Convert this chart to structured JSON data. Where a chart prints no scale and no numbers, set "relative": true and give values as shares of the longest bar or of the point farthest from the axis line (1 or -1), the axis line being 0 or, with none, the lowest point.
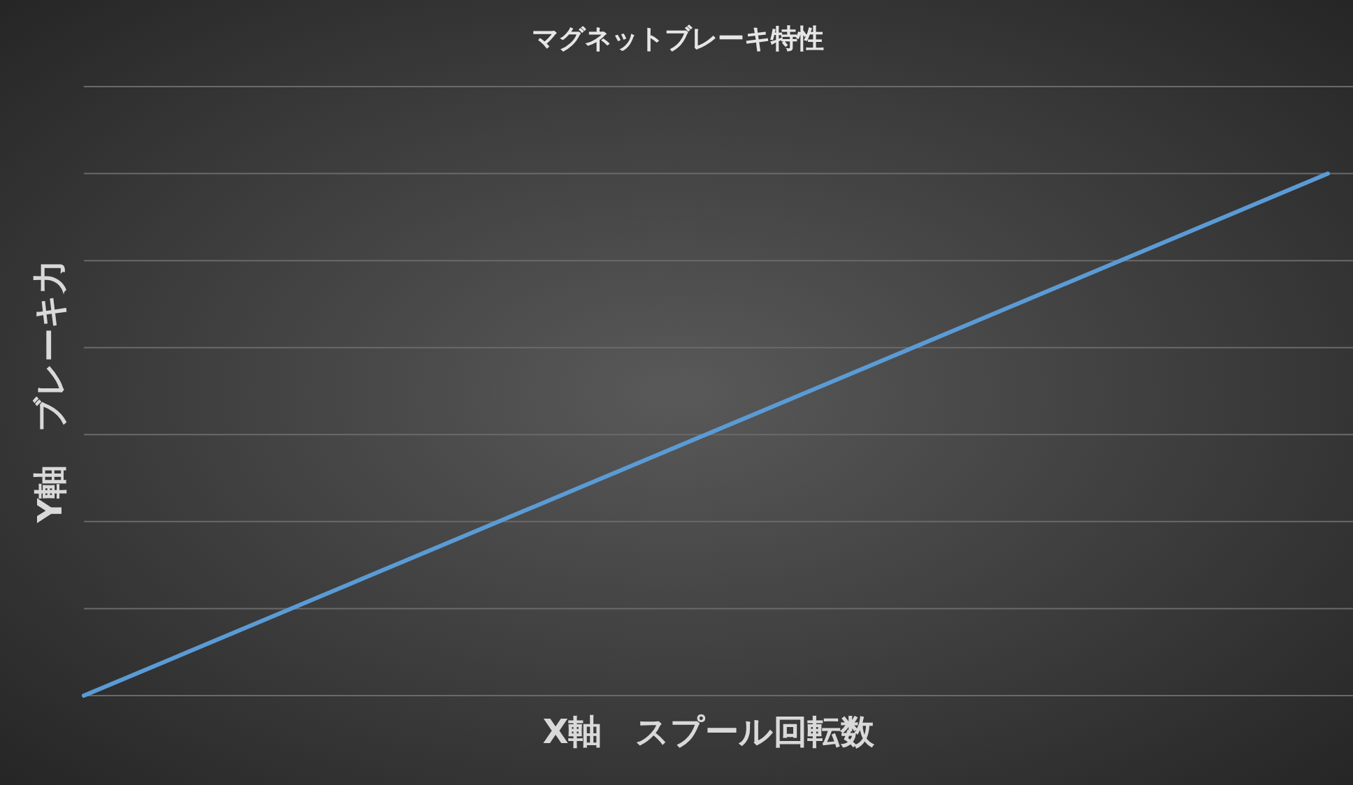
{
  "chart_data": {
    "type": "line",
    "title": "マグネットブレーキ特性",
    "xlabel": "X軸　スプール回転数",
    "ylabel": "Y軸　ブレーキ力",
    "categories": [
      null,
      null,
      null,
      null,
      null,
      null,
      null,
      null,
      null,
      null,
      null
    ],
    "series": [
      {
        "color": "#5b9bd5",
        "values": [
          0,
          0.1,
          0.2,
          0.3,
          0.4,
          0.5,
          0.6,
          0.7,
          0.8,
          0.9,
          1
        ]
      }
    ],
    "relative": true,
    "grid": "y",
    "marker": "none",
    "line_style": "solid"
  }
}
